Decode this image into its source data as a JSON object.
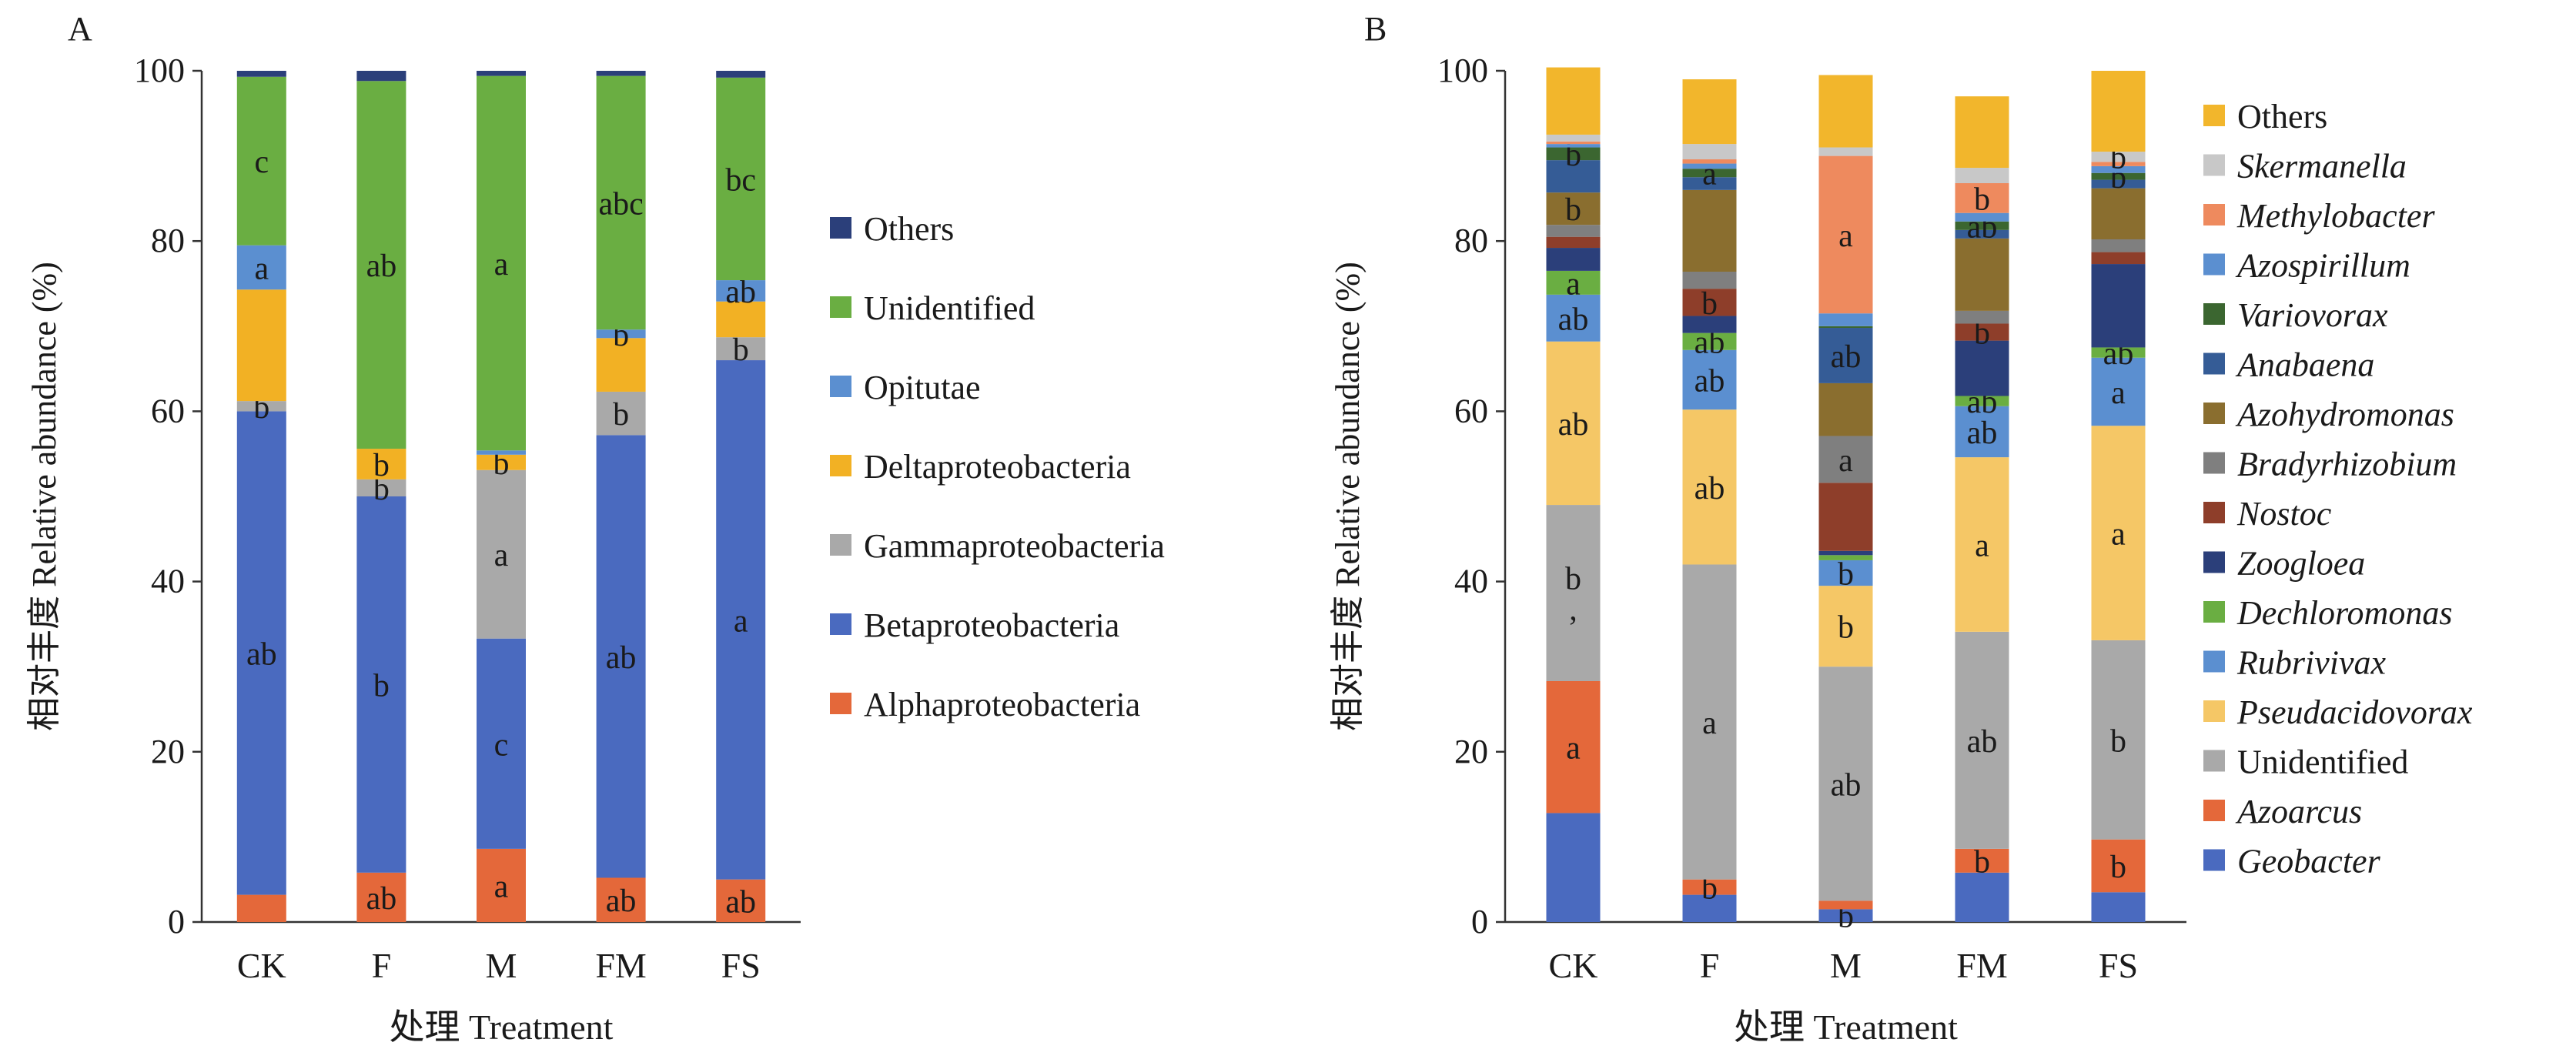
{
  "chart_data": [
    {
      "type": "bar",
      "stacked": true,
      "panel_label": "A",
      "categories": [
        "CK",
        "F",
        "M",
        "FM",
        "FS"
      ],
      "xlabel": "处理 Treatment",
      "ylabel": "相对丰度 Relative abundance (%)",
      "ylim": [
        0,
        100
      ],
      "yticks": [
        0,
        20,
        40,
        60,
        80,
        100
      ],
      "grid": false,
      "legend_position": "right",
      "series": [
        {
          "name": "Alphaproteobacteria",
          "color": "#E4683A",
          "values": [
            3.2,
            5.8,
            8.6,
            5.2,
            5.0
          ],
          "labels": [
            "",
            "ab",
            "a",
            "ab",
            "ab"
          ]
        },
        {
          "name": "Betaproteobacteria",
          "color": "#4A6ABF",
          "values": [
            56.8,
            44.2,
            24.7,
            52.0,
            61.0
          ],
          "labels": [
            "ab",
            "b",
            "c",
            "ab",
            "a"
          ]
        },
        {
          "name": "Gammaproteobacteria",
          "color": "#A9A9A9",
          "values": [
            1.2,
            2.0,
            19.8,
            5.1,
            2.7
          ],
          "labels": [
            "b",
            "b",
            "a",
            "b",
            "b"
          ]
        },
        {
          "name": "Deltaproteobacteria",
          "color": "#F2B124",
          "values": [
            13.1,
            3.6,
            1.8,
            6.3,
            4.2
          ],
          "labels": [
            "",
            "b",
            "b",
            "",
            ""
          ]
        },
        {
          "name": "Opitutae",
          "color": "#5B8FD0",
          "values": [
            5.2,
            0.0,
            0.5,
            1.0,
            2.5
          ],
          "labels": [
            "a",
            "",
            "",
            "b",
            "ab"
          ]
        },
        {
          "name": "Unidentified",
          "color": "#6AAE42",
          "values": [
            19.8,
            43.2,
            44.0,
            29.8,
            23.8
          ],
          "labels": [
            "c",
            "ab",
            "a",
            "abc",
            "bc"
          ]
        },
        {
          "name": "Others",
          "color": "#2B3F7A",
          "values": [
            0.7,
            1.2,
            0.6,
            0.6,
            0.8
          ],
          "labels": [
            "",
            "",
            "",
            "",
            ""
          ]
        }
      ]
    },
    {
      "type": "bar",
      "stacked": true,
      "panel_label": "B",
      "categories": [
        "CK",
        "F",
        "M",
        "FM",
        "FS"
      ],
      "xlabel": "处理 Treatment",
      "ylabel": "相对丰度 Relative abundance (%)",
      "ylim": [
        0,
        100
      ],
      "yticks": [
        0,
        20,
        40,
        60,
        80,
        100
      ],
      "grid": false,
      "legend_position": "right",
      "series": [
        {
          "name": "Geobacter",
          "italic": true,
          "color": "#4A6ABF",
          "values": [
            12.8,
            3.2,
            1.5,
            5.8,
            3.5
          ],
          "labels": [
            "",
            "",
            "b",
            "",
            ""
          ]
        },
        {
          "name": "Azoarcus",
          "italic": true,
          "color": "#E4683A",
          "values": [
            15.5,
            1.8,
            1.0,
            2.8,
            6.2
          ],
          "labels": [
            "a",
            "b",
            "",
            "b",
            "b"
          ]
        },
        {
          "name": "Unidentified",
          "italic": false,
          "color": "#A9A9A9",
          "values": [
            20.7,
            37.0,
            27.5,
            25.5,
            23.4
          ],
          "labels": [
            "b\n,",
            "a",
            "ab",
            "ab",
            "b"
          ]
        },
        {
          "name": "Pseudacidovorax",
          "italic": true,
          "color": "#F5C766",
          "values": [
            19.2,
            18.2,
            9.5,
            20.5,
            25.2
          ],
          "labels": [
            "ab",
            "ab",
            "b",
            "a",
            "a"
          ]
        },
        {
          "name": "Rubrivivax",
          "italic": true,
          "color": "#5B8FD0",
          "values": [
            5.5,
            7.0,
            3.0,
            6.0,
            8.0
          ],
          "labels": [
            "ab",
            "ab",
            "b",
            "ab",
            "a"
          ]
        },
        {
          "name": "Dechloromonas",
          "italic": true,
          "color": "#6AAE42",
          "values": [
            2.8,
            2.0,
            0.6,
            1.2,
            1.2
          ],
          "labels": [
            "a",
            "ab",
            "",
            "ab",
            "ab"
          ]
        },
        {
          "name": "Zoogloea",
          "italic": true,
          "color": "#2B3F7A",
          "values": [
            2.7,
            2.0,
            0.5,
            6.5,
            9.8
          ],
          "labels": [
            "",
            "",
            "",
            "",
            ""
          ]
        },
        {
          "name": "Nostoc",
          "italic": true,
          "color": "#8E3E2A",
          "values": [
            1.3,
            3.2,
            8.0,
            2.0,
            1.4
          ],
          "labels": [
            "",
            "b",
            "",
            "b",
            ""
          ]
        },
        {
          "name": "Bradyrhizobium",
          "italic": true,
          "color": "#7F7F7F",
          "values": [
            1.4,
            2.0,
            5.5,
            1.5,
            1.5
          ],
          "labels": [
            "",
            "",
            "a",
            "",
            ""
          ]
        },
        {
          "name": "Azohydromonas",
          "italic": true,
          "color": "#8A6E2F",
          "values": [
            3.8,
            9.6,
            6.2,
            8.5,
            6.0
          ],
          "labels": [
            "b",
            "",
            "",
            "",
            ""
          ]
        },
        {
          "name": "Anabaena",
          "italic": true,
          "color": "#355C96",
          "values": [
            3.8,
            1.5,
            6.5,
            1.0,
            1.0
          ],
          "labels": [
            "",
            "",
            "ab",
            "",
            ""
          ]
        },
        {
          "name": "Variovorax",
          "italic": true,
          "color": "#3B6630",
          "values": [
            1.5,
            1.0,
            0.2,
            1.0,
            0.8
          ],
          "labels": [
            "b",
            "a",
            "",
            "ab",
            "b"
          ]
        },
        {
          "name": "Azospirillum",
          "italic": true,
          "color": "#5B8FD0",
          "values": [
            0.4,
            0.6,
            1.5,
            1.0,
            0.8
          ],
          "labels": [
            "",
            "",
            "",
            "",
            ""
          ]
        },
        {
          "name": "Methylobacter",
          "italic": true,
          "color": "#EE8A5E",
          "values": [
            0.3,
            0.5,
            18.5,
            3.5,
            0.5
          ],
          "labels": [
            "",
            "",
            "a",
            "b",
            ""
          ]
        },
        {
          "name": "Skermanella",
          "italic": true,
          "color": "#C8C8C8",
          "values": [
            0.8,
            1.8,
            1.0,
            1.8,
            1.2
          ],
          "labels": [
            "",
            "",
            "",
            "",
            "b"
          ]
        },
        {
          "name": "Others",
          "italic": false,
          "color": "#F2B62C",
          "values": [
            7.9,
            7.6,
            8.5,
            8.4,
            9.5
          ],
          "labels": [
            "",
            "",
            "",
            "",
            ""
          ]
        }
      ]
    }
  ]
}
